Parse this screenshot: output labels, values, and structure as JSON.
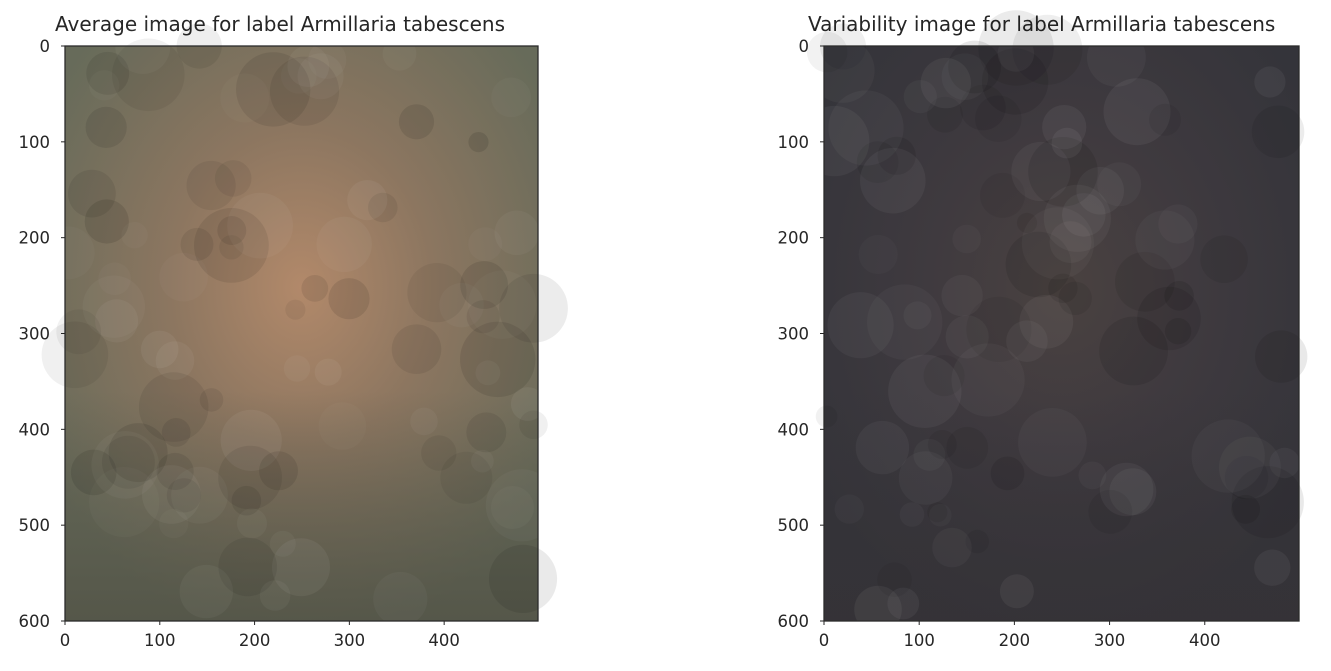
{
  "chart_data": [
    {
      "type": "heatmap",
      "title": "Average image for label Armillaria tabescens",
      "xlabel": "",
      "ylabel": "",
      "xlim": [
        0,
        499
      ],
      "ylim": [
        600,
        0
      ],
      "x_ticks": [
        0,
        100,
        200,
        300,
        400
      ],
      "y_ticks": [
        0,
        100,
        200,
        300,
        400,
        500,
        600
      ],
      "grid": false,
      "colors": {
        "edge": "#676b5a",
        "mid": "#8c7660",
        "center": "#b2896a",
        "bottom": "#4f5044",
        "frame": "#2b2b2b"
      }
    },
    {
      "type": "heatmap",
      "title": "Variability image for label Armillaria tabescens",
      "xlabel": "",
      "ylabel": "",
      "xlim": [
        0,
        499
      ],
      "ylim": [
        600,
        0
      ],
      "x_ticks": [
        0,
        100,
        200,
        300,
        400
      ],
      "y_ticks": [
        0,
        100,
        200,
        300,
        400,
        500,
        600
      ],
      "grid": false,
      "colors": {
        "edge": "#34343a",
        "mid": "#3f3a3f",
        "center": "#4a4240",
        "bottom": "#353236",
        "frame": "#2b2b2b"
      }
    }
  ]
}
